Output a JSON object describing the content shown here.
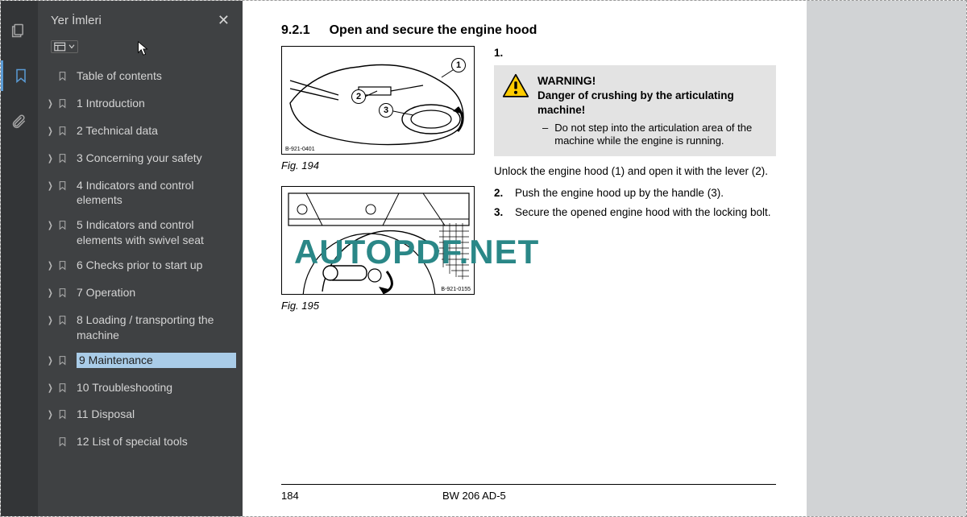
{
  "sidebar": {
    "title": "Yer İmleri",
    "items": [
      {
        "label": "Table of contents",
        "expandable": false,
        "selected": false
      },
      {
        "label": "1 Introduction",
        "expandable": true,
        "selected": false
      },
      {
        "label": "2 Technical data",
        "expandable": true,
        "selected": false
      },
      {
        "label": "3 Concerning your safety",
        "expandable": true,
        "selected": false
      },
      {
        "label": "4 Indicators and control elements",
        "expandable": true,
        "selected": false
      },
      {
        "label": "5 Indicators and control elements with swivel seat",
        "expandable": true,
        "selected": false
      },
      {
        "label": "6 Checks prior to start up",
        "expandable": true,
        "selected": false
      },
      {
        "label": "7 Operation",
        "expandable": true,
        "selected": false
      },
      {
        "label": "8 Loading / transporting the machine",
        "expandable": true,
        "selected": false
      },
      {
        "label": "9 Maintenance",
        "expandable": true,
        "selected": true
      },
      {
        "label": "10 Troubleshooting",
        "expandable": true,
        "selected": false
      },
      {
        "label": "11 Disposal",
        "expandable": true,
        "selected": false
      },
      {
        "label": "12 List of special tools",
        "expandable": false,
        "selected": false
      }
    ]
  },
  "document": {
    "section_number": "9.2.1",
    "section_title": "Open and secure the engine hood",
    "fig1": {
      "caption": "Fig.  194",
      "code": "B-921-0401",
      "callouts": [
        "1",
        "2",
        "3"
      ]
    },
    "fig2": {
      "caption": "Fig.  195",
      "code": "B-921-0155"
    },
    "warning": {
      "title": "WARNING!",
      "subtitle": "Danger of crushing by the articulating machine!",
      "bullet": "Do not step into the articula­tion area of the machine while the engine is running."
    },
    "steps": [
      {
        "num": "1.",
        "text_pre_warning": true
      },
      {
        "num": "",
        "text": "Unlock the engine hood (1) and open it with the lever (2)."
      },
      {
        "num": "2.",
        "text": "Push the engine hood up by the handle (3)."
      },
      {
        "num": "3.",
        "text": "Secure the opened engine hood with the locking bolt."
      }
    ],
    "footer": {
      "page": "184",
      "model": "BW 206 AD-5"
    },
    "watermark": "AUTOPDF.NET"
  },
  "colors": {
    "toolbar_bg": "#333537",
    "sidebar_bg": "#3f4143",
    "accent": "#5b9bd5",
    "selection": "#a9cce8",
    "watermark": "#2a8787",
    "warning_bg": "#e3e3e3",
    "warning_yellow": "#ffcc00"
  }
}
